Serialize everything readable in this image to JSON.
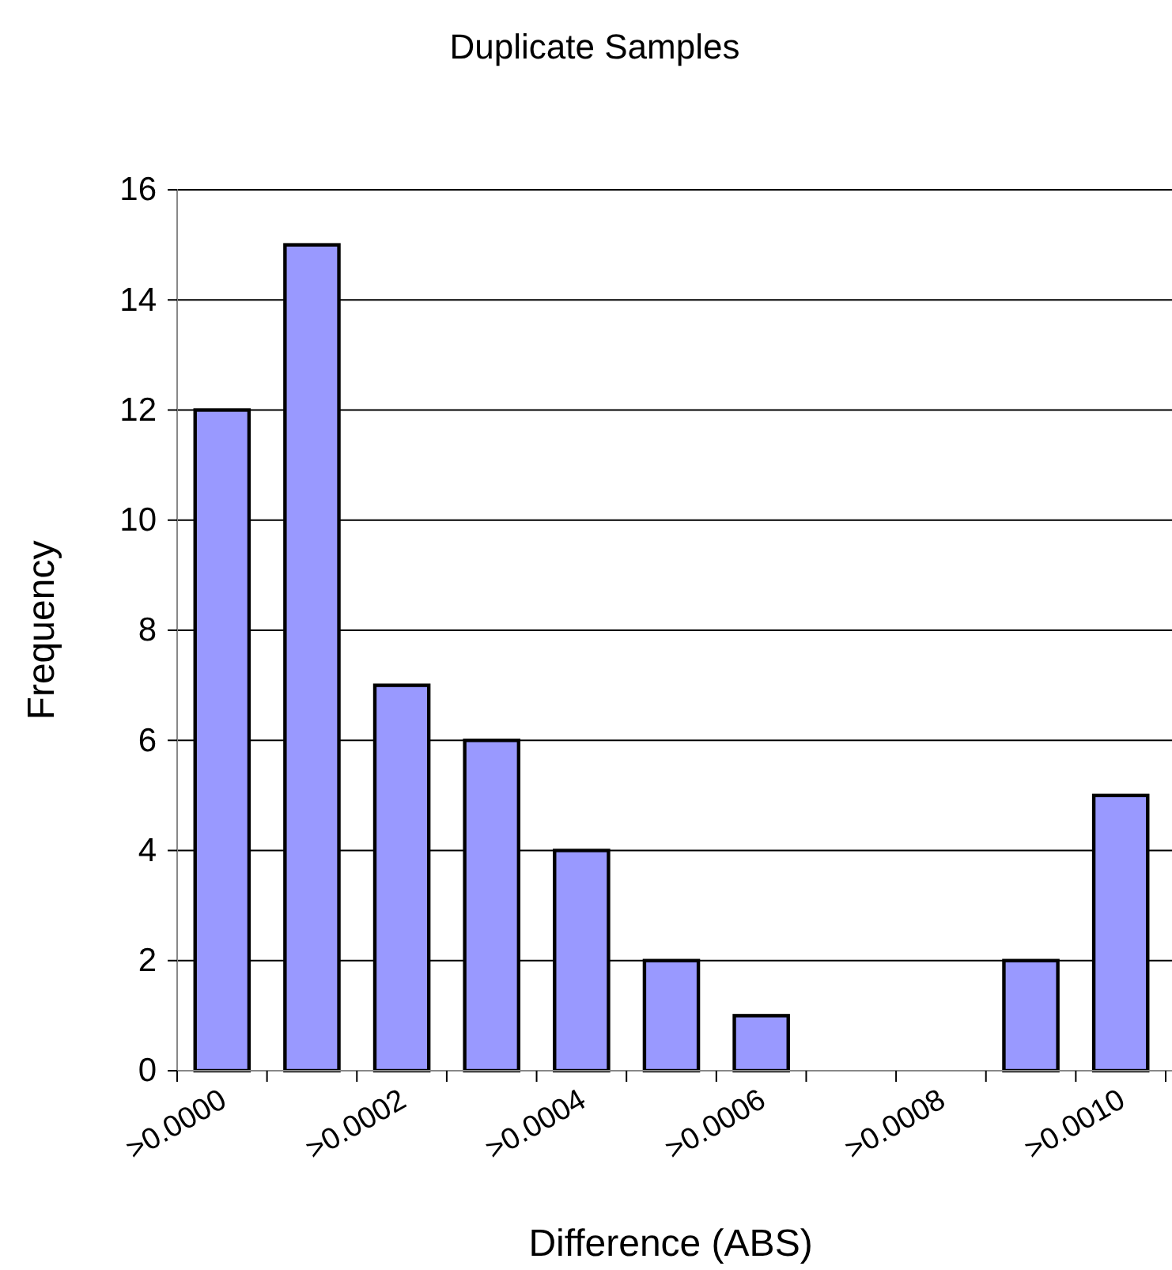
{
  "chart_data": {
    "type": "bar",
    "title": "Duplicate Samples",
    "xlabel": "Difference (ABS)",
    "ylabel": "Frequency",
    "categories": [
      ">0.0000",
      null,
      ">0.0002",
      null,
      ">0.0004",
      null,
      ">0.0006",
      null,
      ">0.0008",
      null,
      ">0.0010"
    ],
    "values": [
      12,
      15,
      7,
      6,
      4,
      2,
      1,
      0,
      0,
      2,
      5
    ],
    "color": "#9999ff",
    "ylim": [
      0,
      16
    ],
    "yticks": [
      0,
      2,
      4,
      6,
      8,
      10,
      12,
      14,
      16
    ],
    "grid": "y"
  }
}
